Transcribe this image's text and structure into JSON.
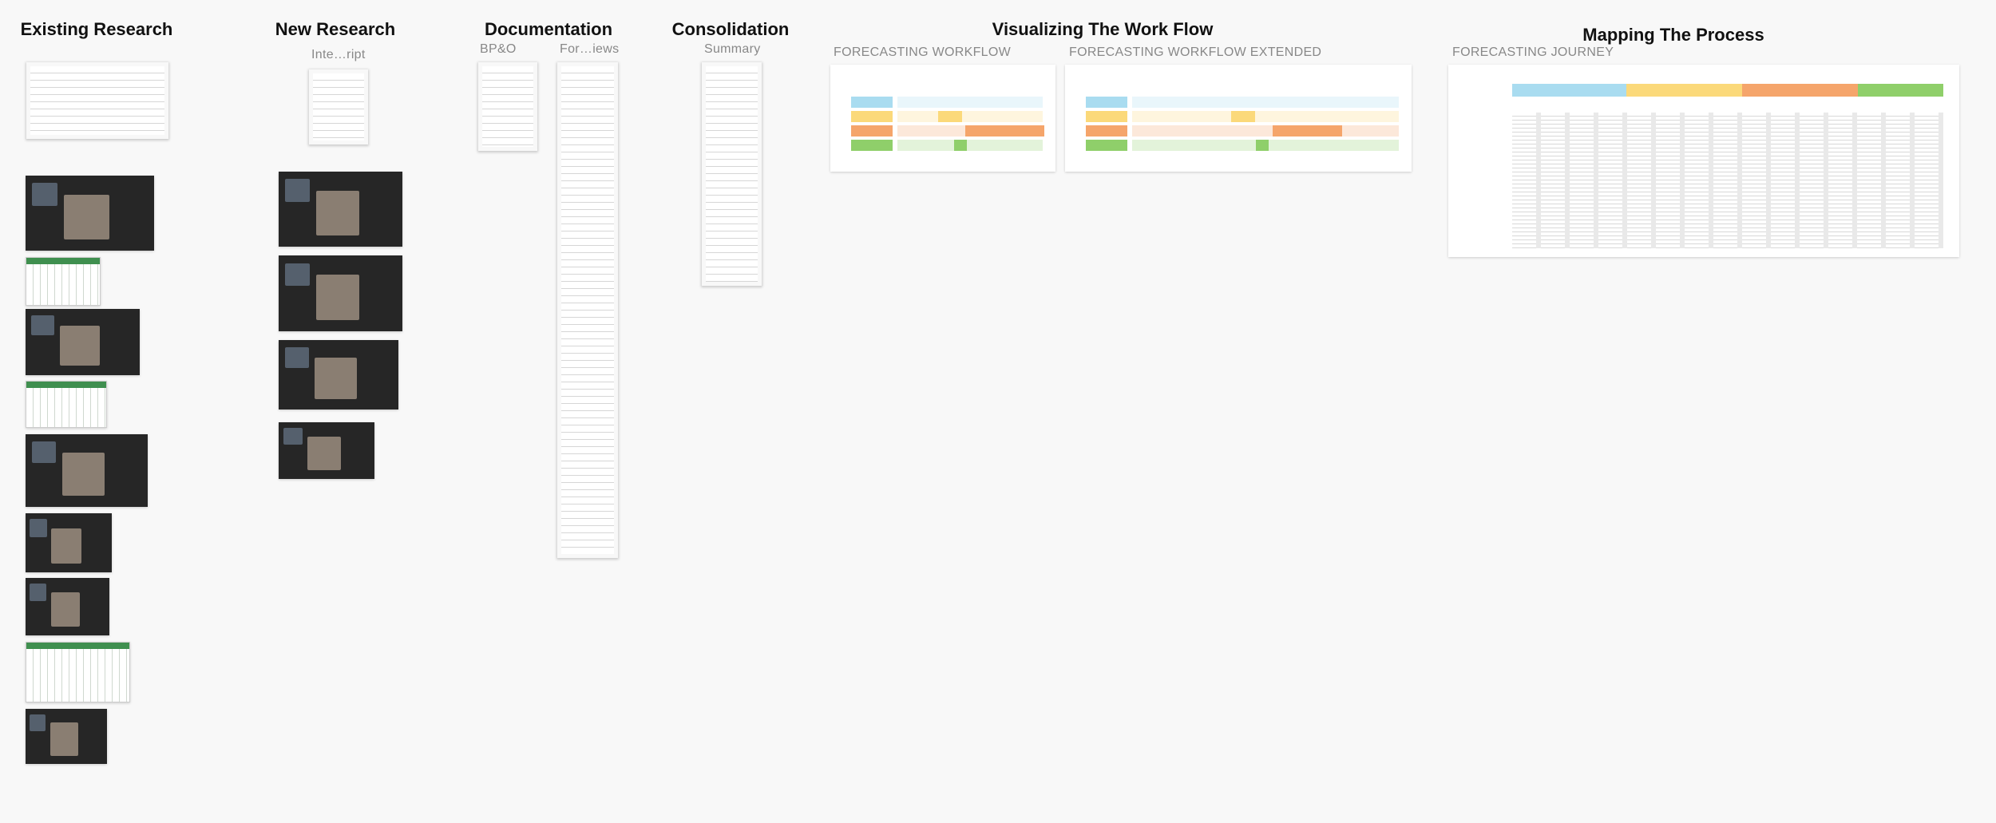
{
  "sections": [
    {
      "title": "Existing Research",
      "frames": []
    },
    {
      "title": "New Research",
      "frames": [
        "Inte…ript"
      ]
    },
    {
      "title": "Documentation",
      "frames": [
        "BP&O",
        "For…iews"
      ]
    },
    {
      "title": "Consolidation",
      "frames": [
        "Summary"
      ]
    },
    {
      "title": "Visualizing The Work Flow",
      "frames": [
        "FORECASTING WORKFLOW",
        "FORECASTING WORKFLOW EXTENDED"
      ]
    },
    {
      "title": "Mapping The Process",
      "frames": [
        "FORECASTING JOURNEY"
      ]
    }
  ]
}
